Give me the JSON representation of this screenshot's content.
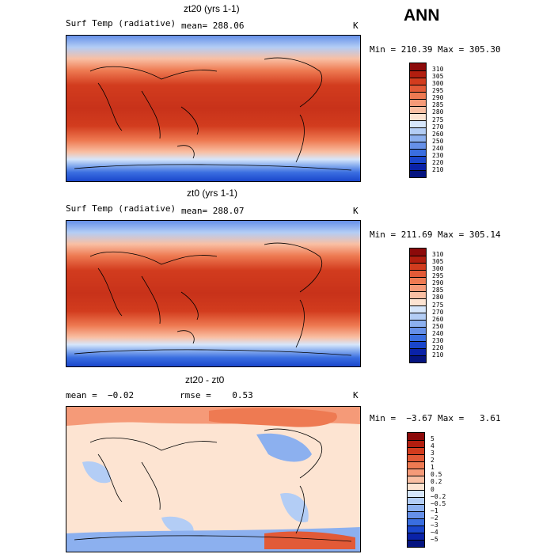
{
  "season": "ANN",
  "chart_data": [
    {
      "type": "contour-map",
      "title": "zt20 (yrs 1-1)",
      "field_label": "Surf Temp (radiative)",
      "mean_text": "mean= 288.06",
      "units": "K",
      "minmax": "Min = 210.39 Max = 305.30",
      "levels": [
        "310",
        "305",
        "300",
        "295",
        "290",
        "285",
        "280",
        "275",
        "270",
        "260",
        "250",
        "240",
        "230",
        "220",
        "210"
      ],
      "colors": [
        "#8c0a0a",
        "#b21e0f",
        "#d23c1e",
        "#e25a37",
        "#ee7a52",
        "#f59a78",
        "#f9bfa3",
        "#fde4d2",
        "#d6e6fb",
        "#b3cdf5",
        "#8cb0ef",
        "#6690e8",
        "#3a6ee0",
        "#1a46cc",
        "#0a22a8",
        "#051480"
      ]
    },
    {
      "type": "contour-map",
      "title": "zt0 (yrs 1-1)",
      "field_label": "Surf Temp (radiative)",
      "mean_text": "mean= 288.07",
      "units": "K",
      "minmax": "Min = 211.69 Max = 305.14",
      "levels": [
        "310",
        "305",
        "300",
        "295",
        "290",
        "285",
        "280",
        "275",
        "270",
        "260",
        "250",
        "240",
        "230",
        "220",
        "210"
      ],
      "colors": [
        "#8c0a0a",
        "#b21e0f",
        "#d23c1e",
        "#e25a37",
        "#ee7a52",
        "#f59a78",
        "#f9bfa3",
        "#fde4d2",
        "#d6e6fb",
        "#b3cdf5",
        "#8cb0ef",
        "#6690e8",
        "#3a6ee0",
        "#1a46cc",
        "#0a22a8",
        "#051480"
      ]
    },
    {
      "type": "contour-map",
      "title": "zt20 - zt0",
      "mean_text": "mean =  −0.02",
      "rmse_text": "rmse =    0.53",
      "units": "K",
      "minmax": "Min =  −3.67 Max =   3.61",
      "levels": [
        "5",
        "4",
        "3",
        "2",
        "1",
        "0.5",
        "0.2",
        "0",
        "−0.2",
        "−0.5",
        "−1",
        "−2",
        "−3",
        "−4",
        "−5"
      ],
      "colors": [
        "#8c0a0a",
        "#b21e0f",
        "#d23c1e",
        "#e25a37",
        "#ee7a52",
        "#f59a78",
        "#f9bfa3",
        "#fde4d2",
        "#d6e6fb",
        "#b3cdf5",
        "#8cb0ef",
        "#6690e8",
        "#3a6ee0",
        "#1a46cc",
        "#0a22a8",
        "#051480"
      ]
    }
  ]
}
